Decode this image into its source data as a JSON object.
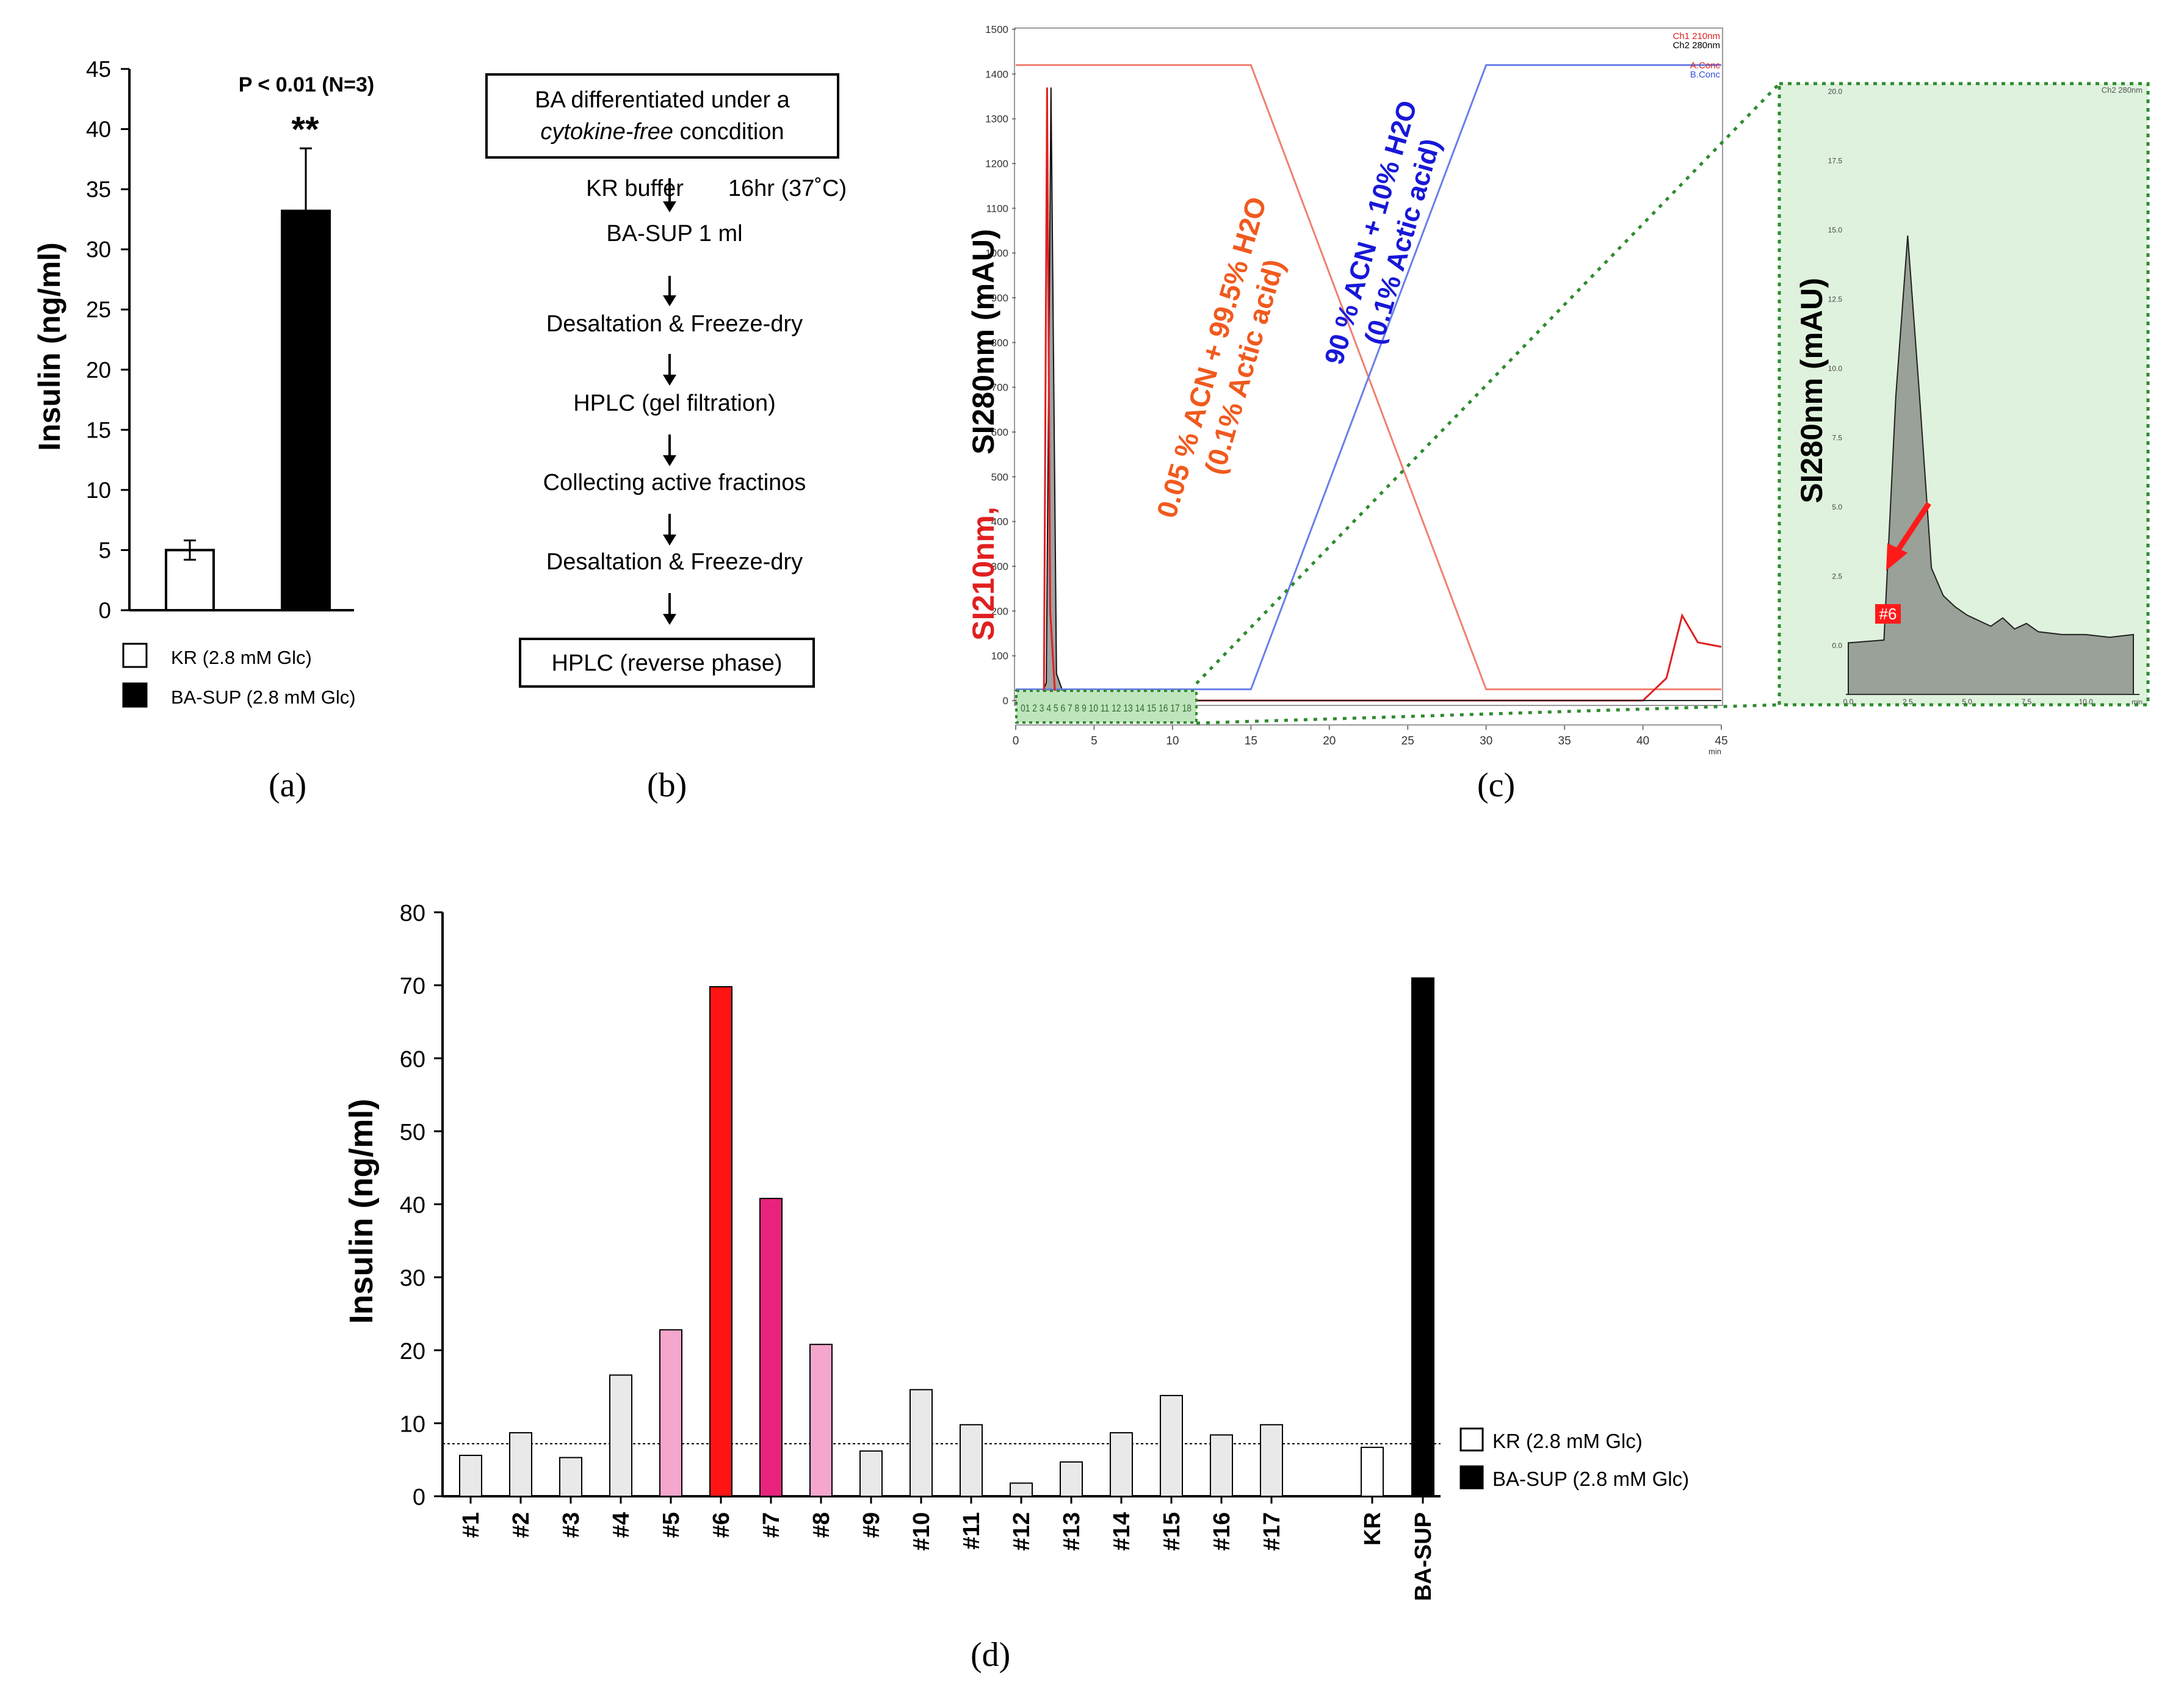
{
  "panel_labels": {
    "a": "(a)",
    "b": "(b)",
    "c": "(c)",
    "d": "(d)"
  },
  "legend": {
    "kr": "KR (2.8 mM Glc)",
    "basup": "BA-SUP (2.8 mM Glc)"
  },
  "flow": {
    "title_line1": "BA differentiated under a",
    "title_line2_italic": "cytokine-free",
    "title_line2_rest": " concdition",
    "step1": "KR buffer",
    "step1_note": "16hr (37˚C)",
    "step2": "BA-SUP 1 ml",
    "step3": "Desaltation & Freeze-dry",
    "step4": "HPLC (gel filtration)",
    "step5": "Collecting active fractinos",
    "step6": "Desaltation & Freeze-dry",
    "step7": "HPLC (reverse phase)"
  },
  "chart_data": [
    {
      "id": "a",
      "type": "bar",
      "categories": [
        "KR (2.8 mM Glc)",
        "BA-SUP (2.8 mM Glc)"
      ],
      "values": [
        5.0,
        33.2
      ],
      "errors": [
        0.8,
        5.2
      ],
      "colors": [
        "#ffffff",
        "#000000"
      ],
      "ylabel": "Insulin (ng/ml)",
      "ylim": [
        0,
        45
      ],
      "yticks": [
        "0",
        "5",
        "10",
        "15",
        "20",
        "25",
        "30",
        "35",
        "40",
        "45"
      ],
      "annotation": "P < 0.01 (N=3)",
      "significance": "**"
    },
    {
      "id": "c",
      "type": "line",
      "title_right_1": "Ch1 210nm",
      "title_right_2": "Ch2 280nm",
      "legend_a": "A.Conc",
      "legend_b": "B.Conc",
      "ylabel_red": "SI210nm,",
      "ylabel_black": "SI280nm (mAU)",
      "xlim": [
        0,
        45
      ],
      "ylim": [
        0,
        1500
      ],
      "xticks": [
        "0",
        "5",
        "10",
        "15",
        "20",
        "25",
        "30",
        "35",
        "40",
        "45"
      ],
      "yticks": [
        "0",
        "100",
        "200",
        "300",
        "400",
        "500",
        "600",
        "700",
        "800",
        "900",
        "1000",
        "1100",
        "1200",
        "1300",
        "1400",
        "1500"
      ],
      "x_unit": "min",
      "annotation_orange_1": "0.05 % ACN + 99.5% H2O",
      "annotation_orange_2": "(0.1% Actic acid)",
      "annotation_blue_1": "90 % ACN + 10% H2O",
      "annotation_blue_2": "(0.1% Actic acid)",
      "fraction_strip": "01 2 3 4 5 6 7 8 9 10 11 12 13 14 15 16 17 18",
      "series": [
        {
          "name": "A.Conc",
          "color": "#f08070",
          "x": [
            0,
            15,
            30,
            45
          ],
          "y": [
            1420,
            1420,
            25,
            25
          ]
        },
        {
          "name": "B.Conc",
          "color": "#6a7fe8",
          "x": [
            0,
            15,
            30,
            45
          ],
          "y": [
            25,
            25,
            1420,
            1420
          ]
        },
        {
          "name": "Ch1 210nm",
          "color": "#e02020",
          "x": [
            0,
            1.8,
            2.0,
            2.2,
            2.5,
            3.0,
            40,
            41.5,
            42.5,
            43.5,
            45
          ],
          "y": [
            0,
            20,
            1370,
            200,
            20,
            0,
            0,
            50,
            190,
            130,
            120
          ]
        }
      ]
    },
    {
      "id": "c-zoom",
      "type": "line",
      "ylabel": "SI280nm (mAU)",
      "corner_label": "Ch2 280nm",
      "xticks": [
        "0.0",
        "2.5",
        "5.0",
        "7.5",
        "10.0"
      ],
      "yticks": [
        "0.0",
        "2.5",
        "5.0",
        "7.5",
        "10.0",
        "12.5",
        "15.0",
        "17.5",
        "20.0"
      ],
      "xlim": [
        0,
        12
      ],
      "ylim": [
        0,
        20
      ],
      "x_unit": "min",
      "marker_label": "#6",
      "series": [
        {
          "name": "Ch2 280nm",
          "color": "#404040",
          "x": [
            0,
            1.5,
            2.0,
            2.5,
            3.0,
            3.5,
            4.0,
            4.5,
            5.0,
            5.5,
            6.0,
            6.5,
            7.0,
            7.5,
            8.0,
            9.0,
            10.0,
            11.0,
            12.0
          ],
          "y": [
            0.1,
            0.2,
            9.0,
            14.8,
            9.0,
            2.8,
            1.8,
            1.4,
            1.1,
            0.9,
            0.7,
            1.0,
            0.6,
            0.8,
            0.5,
            0.4,
            0.4,
            0.3,
            0.4
          ]
        }
      ]
    },
    {
      "id": "d",
      "type": "bar",
      "categories": [
        "#1",
        "#2",
        "#3",
        "#4",
        "#5",
        "#6",
        "#7",
        "#8",
        "#9",
        "#10",
        "#11",
        "#12",
        "#13",
        "#14",
        "#15",
        "#16",
        "#17",
        "KR",
        "BA-SUP"
      ],
      "values": [
        5.6,
        8.7,
        5.3,
        16.6,
        22.8,
        69.8,
        40.8,
        20.8,
        6.2,
        14.6,
        9.8,
        1.8,
        4.7,
        8.7,
        13.8,
        8.4,
        9.8,
        6.7,
        71.0
      ],
      "colors": [
        "#e9e9e9",
        "#e9e9e9",
        "#e9e9e9",
        "#e9e9e9",
        "#f4a6cc",
        "#ff1414",
        "#e8237e",
        "#f4a6cc",
        "#e9e9e9",
        "#e9e9e9",
        "#e9e9e9",
        "#e9e9e9",
        "#e9e9e9",
        "#e9e9e9",
        "#e9e9e9",
        "#e9e9e9",
        "#e9e9e9",
        "#ffffff",
        "#000000"
      ],
      "ylabel": "Insulin (ng/ml)",
      "ylim": [
        0,
        80
      ],
      "yticks": [
        "0",
        "10",
        "20",
        "30",
        "40",
        "50",
        "60",
        "70",
        "80"
      ],
      "reference_line": 7.2
    }
  ]
}
